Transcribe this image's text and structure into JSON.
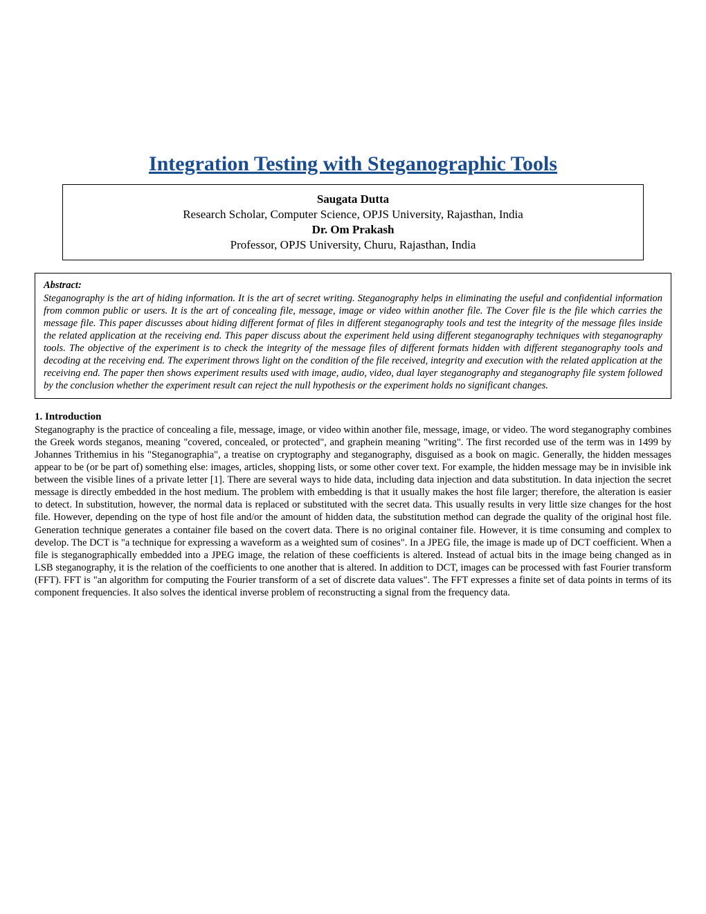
{
  "title": "Integration Testing with Steganographic Tools",
  "authors": {
    "author1_name": "Saugata Dutta",
    "author1_affiliation": "Research Scholar, Computer Science, OPJS University, Rajasthan, India",
    "author2_name": "Dr. Om Prakash",
    "author2_affiliation": "Professor, OPJS University, Churu, Rajasthan, India"
  },
  "abstract": {
    "label": "Abstract:",
    "text": "Steganography is the art of hiding information. It is the art of secret writing. Steganography helps in eliminating the useful and confidential information from common public or users. It is the art of concealing file, message, image or video within another file. The Cover file is the file which carries the message file. This paper discusses about hiding different format of files in different steganography tools and test the integrity of the message files inside the related application at the receiving end. This paper discuss about the experiment held using different steganography techniques with steganography tools. The objective of the experiment is to check the integrity of the message files of different formats hidden with different steganography tools and decoding at the receiving end. The experiment throws light on the condition of the file received, integrity and execution with the related application at the receiving end. The paper then shows experiment results used with image, audio, video, dual layer steganography and steganography file system followed by the conclusion whether the experiment result can reject the null hypothesis or the experiment holds no significant changes."
  },
  "section1": {
    "heading": "1. Introduction",
    "body": "Steganography is the practice of concealing a file, message, image, or video within another file, message, image, or video. The word steganography combines the Greek words steganos, meaning \"covered, concealed, or protected\", and graphein meaning \"writing\". The first recorded use of the term was in 1499 by Johannes Trithemius in his \"Steganographia\", a treatise on cryptography and steganography, disguised as a book on magic. Generally, the hidden messages appear to be (or be part of) something else: images, articles, shopping lists, or some other cover text. For example, the hidden message may be in invisible ink between the visible lines of a private letter [1].  There are several ways to hide data, including data injection and data substitution. In data injection the secret message is directly embedded in the host medium. The problem with embedding is that it usually makes the host file larger; therefore, the alteration is easier to detect. In substitution, however, the normal data is replaced or substituted with the secret data. This usually results in very little size changes for the host file. However, depending on the type of host file and/or the amount of hidden data, the substitution method can degrade the quality of the original host file. Generation technique generates a container file based on the covert data. There is no original container file. However, it is time consuming and complex to develop. The DCT is \"a technique for expressing a waveform as a weighted sum of cosines\". In a JPEG file, the image is made up of DCT coefficient. When a file is steganographically embedded into a JPEG image, the relation of these coefficients is altered. Instead of actual bits in the image being changed as in LSB steganography, it is the relation of the coefficients to one another that is altered. In addition to DCT, images can be processed with fast Fourier transform (FFT). FFT is \"an algorithm for computing the Fourier transform of a set of discrete data values\". The FFT expresses a finite set of data points in terms of its component frequencies. It also solves the identical inverse problem of reconstructing a signal from the frequency data."
  },
  "colors": {
    "title_color": "#1a4d8f",
    "border_color": "#000000",
    "background_color": "#ffffff",
    "text_color": "#000000"
  },
  "typography": {
    "title_fontsize": 30,
    "author_fontsize": 17,
    "abstract_fontsize": 14.5,
    "body_fontsize": 14.5,
    "heading_fontsize": 15,
    "font_family": "Times New Roman"
  }
}
